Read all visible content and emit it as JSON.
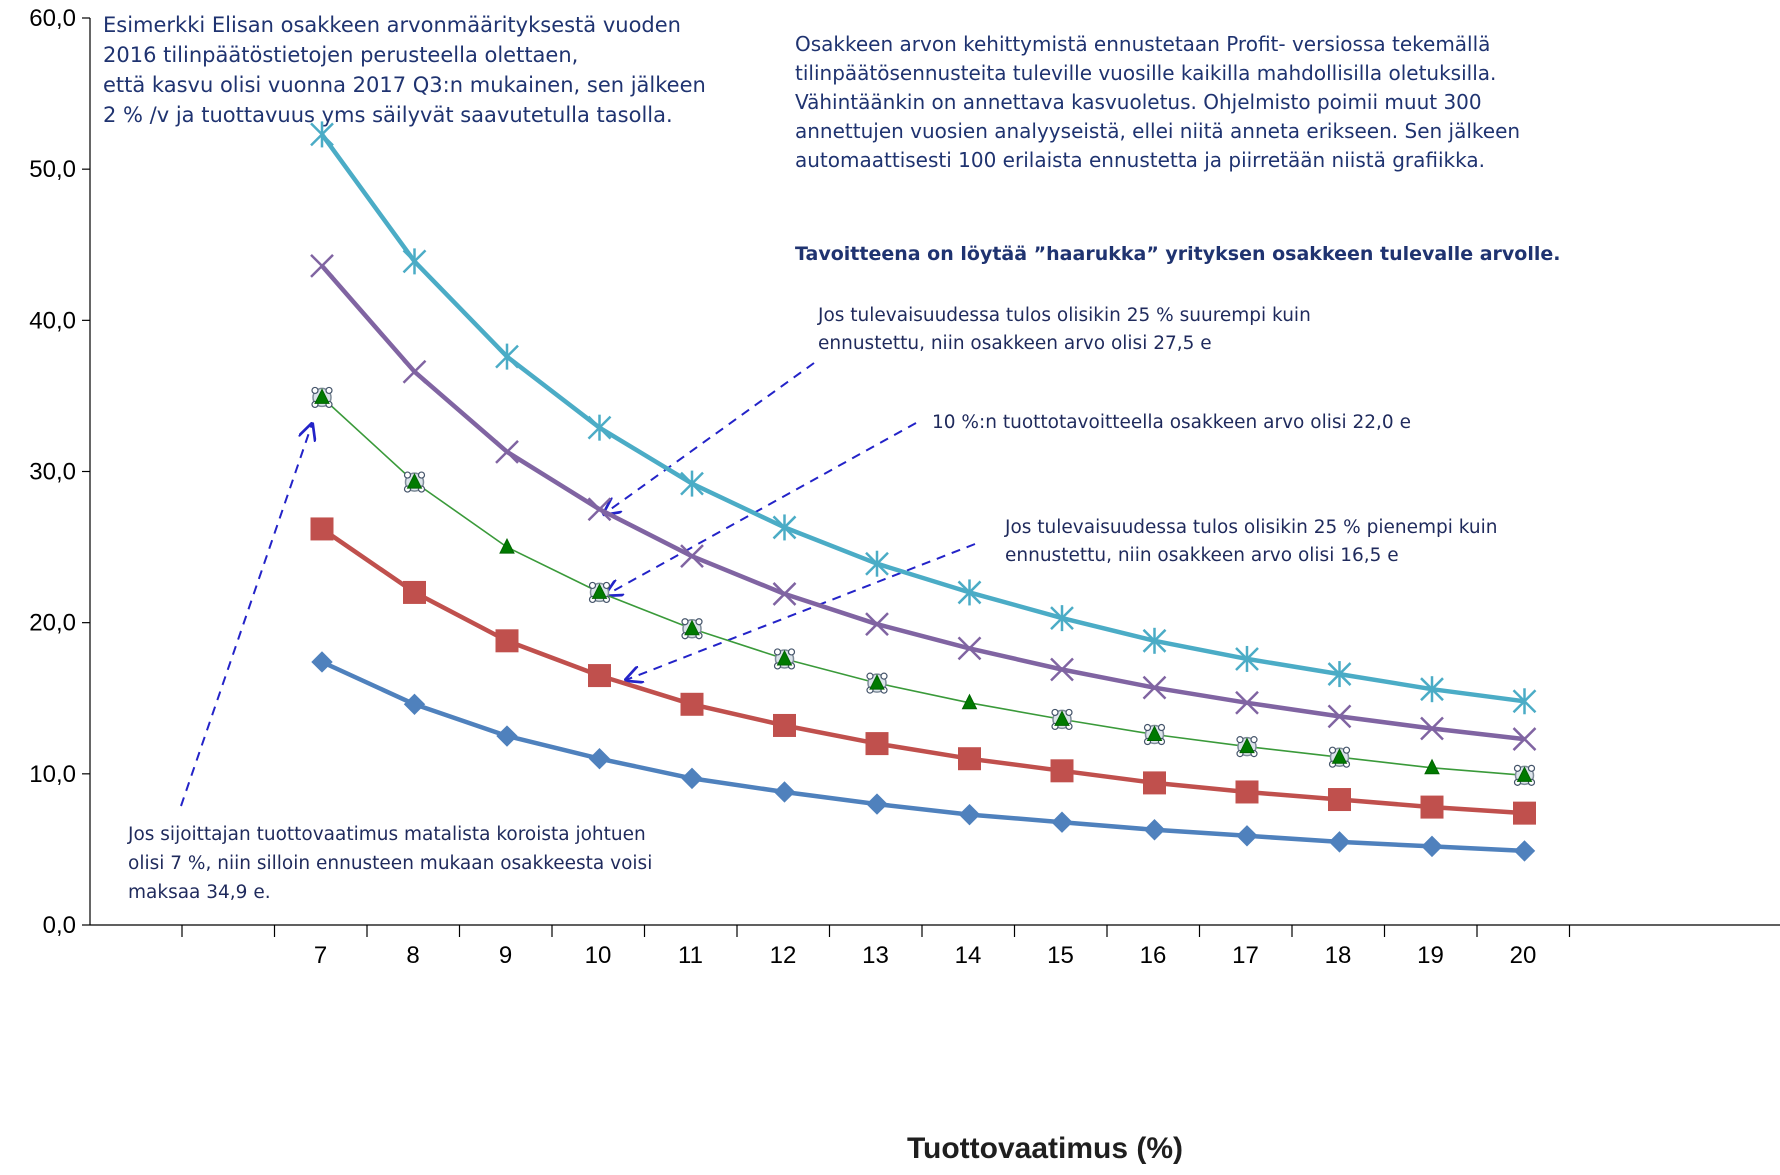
{
  "chart_data": {
    "type": "line",
    "x": [
      7,
      8,
      9,
      10,
      11,
      12,
      13,
      14,
      15,
      16,
      17,
      18,
      19,
      20
    ],
    "xlabel": "Tuottovaatimus (%)",
    "ylabel": "",
    "ylim": [
      0,
      60
    ],
    "yticks": [
      "0,0",
      "10,0",
      "20,0",
      "30,0",
      "40,0",
      "50,0",
      "60,0"
    ],
    "xticks": [
      "7",
      "8",
      "9",
      "10",
      "11",
      "12",
      "13",
      "14",
      "15",
      "16",
      "17",
      "18",
      "19",
      "20"
    ],
    "grid": false,
    "series": [
      {
        "color": "#4bacc6",
        "marker": "asterisk",
        "values": [
          52.3,
          43.9,
          37.6,
          32.9,
          29.2,
          26.3,
          23.9,
          22.0,
          20.3,
          18.8,
          17.6,
          16.6,
          15.6,
          14.8
        ]
      },
      {
        "color": "#8064a2",
        "marker": "x",
        "values": [
          43.6,
          36.6,
          31.3,
          27.5,
          24.4,
          21.9,
          19.9,
          18.3,
          16.9,
          15.7,
          14.7,
          13.8,
          13.0,
          12.3
        ]
      },
      {
        "color": "#3a9a3a",
        "marker": "triangle",
        "thin": true,
        "values": [
          34.9,
          29.3,
          25.0,
          22.0,
          19.6,
          17.6,
          16.0,
          14.7,
          13.6,
          12.6,
          11.8,
          11.1,
          10.4,
          9.9
        ]
      },
      {
        "color": "#c0504d",
        "marker": "square",
        "values": [
          26.2,
          22.0,
          18.8,
          16.5,
          14.6,
          13.2,
          12.0,
          11.0,
          10.2,
          9.4,
          8.8,
          8.3,
          7.8,
          7.4
        ]
      },
      {
        "color": "#4f81bd",
        "marker": "diamond",
        "values": [
          17.4,
          14.6,
          12.5,
          11.0,
          9.7,
          8.8,
          8.0,
          7.3,
          6.8,
          6.3,
          5.9,
          5.5,
          5.2,
          4.9
        ]
      }
    ]
  },
  "annotations": {
    "top_left": [
      "Esimerkki Elisan osakkeen arvonmäärityksestä vuoden",
      "2016 tilinpäätöstietojen perusteella olettaen,",
      "että kasvu olisi vuonna 2017 Q3:n mukainen, sen jälkeen",
      "2 % /v ja tuottavuus yms säilyvät  saavutetulla tasolla."
    ],
    "top_right": [
      "Osakkeen arvon kehittymistä ennustetaan Profit- versiossa tekemällä",
      "tilinpäätösennusteita tuleville vuosille kaikilla mahdollisilla oletuksilla.",
      "Vähintäänkin on annettava kasvuoletus. Ohjelmisto poimii muut 300",
      "annettujen vuosien analyyseistä, ellei niitä anneta erikseen. Sen jälkeen",
      "automaattisesti 100 erilaista ennustetta ja piirretään niistä grafiikka."
    ],
    "goal": "Tavoitteena on löytää ”haarukka” yrityksen osakkeen tulevalle arvolle.",
    "upper": [
      "Jos tulevaisuudessa  tulos olisikin 25 % suurempi kuin",
      "ennustettu, niin osakkeen arvo olisi 27,5 e"
    ],
    "middle": "10 %:n tuottotavoitteella  osakkeen arvo olisi 22,0 e",
    "lower": [
      "Jos tulevaisuudessa  tulos olisikin 25 % pienempi kuin",
      "ennustettu, niin osakkeen arvo olisi 16,5 e"
    ],
    "bottom": [
      "Jos sijoittajan tuottovaatimus matalista koroista johtuen",
      "olisi 7 %, niin silloin ennusteen mukaan osakkeesta voisi",
      "maksaa 34,9 e."
    ]
  }
}
